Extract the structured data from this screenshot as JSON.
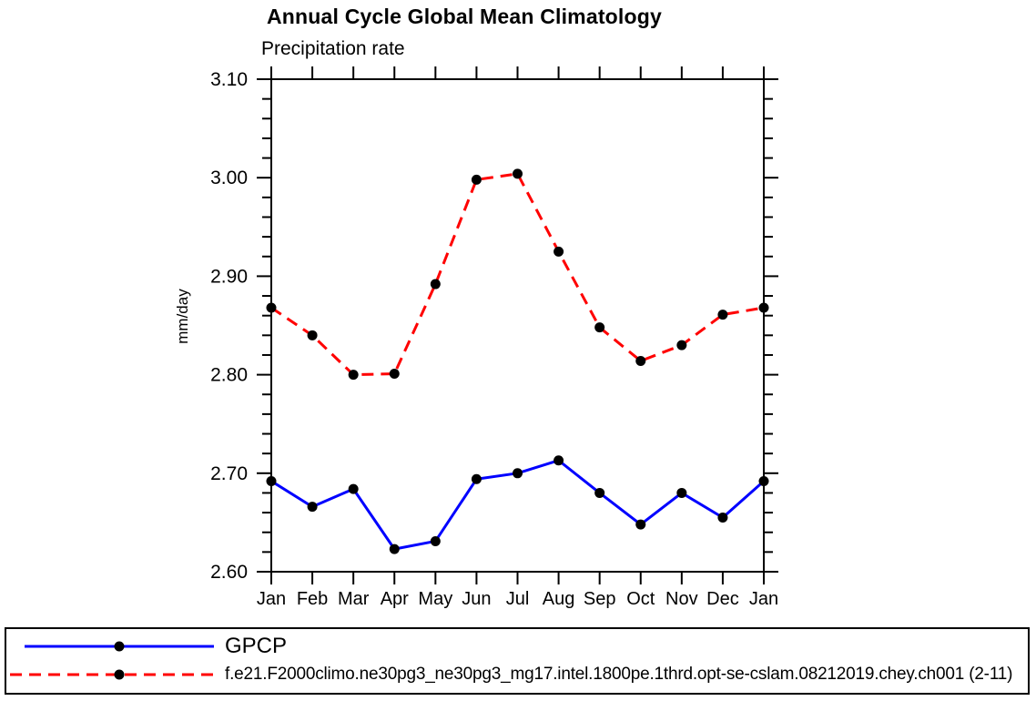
{
  "window": {
    "background_color": "#ffffff",
    "frame_color": "#000000"
  },
  "chart_data": {
    "type": "line",
    "title": "Annual Cycle Global Mean Climatology",
    "subtitle": "Precipitation rate",
    "ylabel": "mm/day",
    "xlabel": "",
    "grid": false,
    "legend_position": "bottom",
    "ylim": [
      2.6,
      3.1
    ],
    "ytick_values": [
      2.6,
      2.7,
      2.8,
      2.9,
      3.0,
      3.1
    ],
    "ytick_labels": [
      "2.60",
      "2.70",
      "2.80",
      "2.90",
      "3.00",
      "3.10"
    ],
    "ytick_minor_step": 0.02,
    "categories": [
      "Jan",
      "Feb",
      "Mar",
      "Apr",
      "May",
      "Jun",
      "Jul",
      "Aug",
      "Sep",
      "Oct",
      "Nov",
      "Dec",
      "Jan"
    ],
    "series": [
      {
        "name": "GPCP",
        "color": "#0000ff",
        "line_style": "solid",
        "line_width": 3,
        "marker": "circle-icon",
        "marker_color": "#000000",
        "values": [
          2.692,
          2.666,
          2.684,
          2.623,
          2.631,
          2.694,
          2.7,
          2.713,
          2.68,
          2.648,
          2.68,
          2.655,
          2.692
        ]
      },
      {
        "name": "f.e21.F2000climo.ne30pg3_ne30pg3_mg17.intel.1800pe.1thrd.opt-se-cslam.08212019.chey.ch001 (2-11)",
        "color": "#ff0000",
        "line_style": "dashed",
        "dash": "13 8",
        "line_width": 3,
        "marker": "circle-icon",
        "marker_color": "#000000",
        "values": [
          2.868,
          2.84,
          2.8,
          2.801,
          2.892,
          2.998,
          3.004,
          2.925,
          2.848,
          2.814,
          2.83,
          2.861,
          2.868
        ]
      }
    ]
  }
}
